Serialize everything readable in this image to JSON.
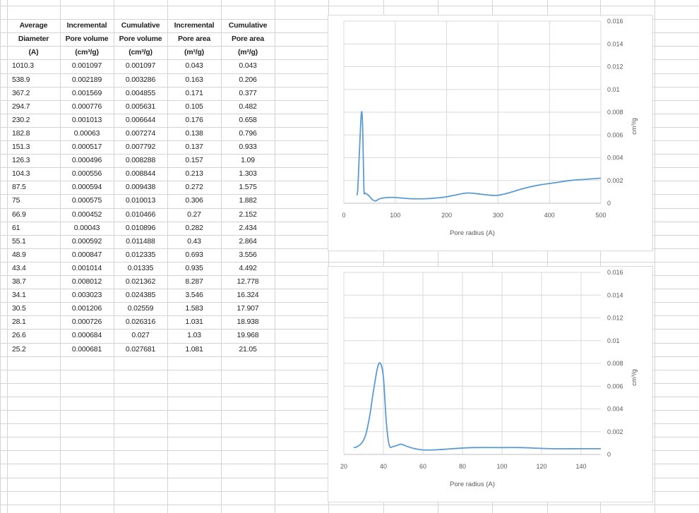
{
  "sheet": {
    "headers": [
      [
        "Average",
        "Incremental",
        "Cumulative",
        "Incremental",
        "Cumulative"
      ],
      [
        "Diameter",
        "Pore volume",
        "Pore volume",
        "Pore area",
        "Pore area"
      ],
      [
        "(A)",
        "(cm³/g)",
        "(cm³/g)",
        "(m²/g)",
        "(m²/g)"
      ]
    ],
    "rows": [
      [
        "1010.3",
        "0.001097",
        "0.001097",
        "0.043",
        "0.043"
      ],
      [
        "538.9",
        "0.002189",
        "0.003286",
        "0.163",
        "0.206"
      ],
      [
        "367.2",
        "0.001569",
        "0.004855",
        "0.171",
        "0.377"
      ],
      [
        "294.7",
        "0.000776",
        "0.005631",
        "0.105",
        "0.482"
      ],
      [
        "230.2",
        "0.001013",
        "0.006644",
        "0.176",
        "0.658"
      ],
      [
        "182.8",
        "0.00063",
        "0.007274",
        "0.138",
        "0.796"
      ],
      [
        "151.3",
        "0.000517",
        "0.007792",
        "0.137",
        "0.933"
      ],
      [
        "126.3",
        "0.000496",
        "0.008288",
        "0.157",
        "1.09"
      ],
      [
        "104.3",
        "0.000556",
        "0.008844",
        "0.213",
        "1.303"
      ],
      [
        "87.5",
        "0.000594",
        "0.009438",
        "0.272",
        "1.575"
      ],
      [
        "75",
        "0.000575",
        "0.010013",
        "0.306",
        "1.882"
      ],
      [
        "66.9",
        "0.000452",
        "0.010466",
        "0.27",
        "2.152"
      ],
      [
        "61",
        "0.00043",
        "0.010896",
        "0.282",
        "2.434"
      ],
      [
        "55.1",
        "0.000592",
        "0.011488",
        "0.43",
        "2.864"
      ],
      [
        "48.9",
        "0.000847",
        "0.012335",
        "0.693",
        "3.556"
      ],
      [
        "43.4",
        "0.001014",
        "0.01335",
        "0.935",
        "4.492"
      ],
      [
        "38.7",
        "0.008012",
        "0.021362",
        "8.287",
        "12.778"
      ],
      [
        "34.1",
        "0.003023",
        "0.024385",
        "3.546",
        "16.324"
      ],
      [
        "30.5",
        "0.001206",
        "0.02559",
        "1.583",
        "17.907"
      ],
      [
        "28.1",
        "0.000726",
        "0.026316",
        "1.031",
        "18.938"
      ],
      [
        "26.6",
        "0.000684",
        "0.027",
        "1.03",
        "19.968"
      ],
      [
        "25.2",
        "0.000681",
        "0.027681",
        "1.081",
        "21.05"
      ]
    ]
  },
  "chart_data": [
    {
      "type": "line",
      "xlabel": "Pore radius (A)",
      "ylabel": "cm³/g",
      "xlim": [
        0,
        500
      ],
      "ylim": [
        0,
        0.016
      ],
      "xticks": [
        "0",
        "100",
        "200",
        "300",
        "400",
        "500"
      ],
      "yticks": [
        "0",
        "0.002",
        "0.004",
        "0.006",
        "0.008",
        "0.01",
        "0.012",
        "0.014",
        "0.016"
      ],
      "y_axis_side": "right",
      "grid": true,
      "line_color": "#5b9bd5",
      "x": [
        25,
        27,
        30,
        33,
        35,
        37,
        39,
        41,
        45,
        50,
        56,
        62,
        70,
        85,
        100,
        130,
        160,
        190,
        215,
        240,
        265,
        285,
        300,
        320,
        350,
        380,
        410,
        440,
        470,
        500
      ],
      "y": [
        0.0007,
        0.0012,
        0.0042,
        0.0072,
        0.008,
        0.006,
        0.0013,
        0.0009,
        0.0008,
        0.0006,
        0.0003,
        0.0002,
        0.0004,
        0.0005,
        0.0005,
        0.0004,
        0.0004,
        0.0005,
        0.0007,
        0.0009,
        0.0008,
        0.0007,
        0.0007,
        0.0009,
        0.0013,
        0.0016,
        0.0018,
        0.002,
        0.0021,
        0.0022
      ]
    },
    {
      "type": "line",
      "xlabel": "Pore radius (A)",
      "ylabel": "cm³/g",
      "xlim": [
        20,
        150
      ],
      "ylim": [
        0,
        0.016
      ],
      "xticks": [
        "20",
        "40",
        "60",
        "80",
        "100",
        "120",
        "140"
      ],
      "yticks": [
        "0",
        "0.002",
        "0.004",
        "0.006",
        "0.008",
        "0.01",
        "0.012",
        "0.014",
        "0.016"
      ],
      "y_axis_side": "right",
      "grid": true,
      "line_color": "#5b9bd5",
      "x": [
        25,
        27,
        29,
        31,
        33,
        35,
        37,
        38.5,
        40,
        41.5,
        43,
        45,
        47,
        49,
        52,
        56,
        60,
        66,
        75,
        85,
        100,
        110,
        125,
        140,
        150
      ],
      "y": [
        0.0006,
        0.0007,
        0.001,
        0.0017,
        0.0033,
        0.0056,
        0.0076,
        0.008,
        0.0068,
        0.0028,
        0.0008,
        0.0007,
        0.0008,
        0.0009,
        0.0007,
        0.0005,
        0.0004,
        0.0004,
        0.0005,
        0.0006,
        0.0006,
        0.0006,
        0.0005,
        0.0005,
        0.0005
      ]
    }
  ]
}
